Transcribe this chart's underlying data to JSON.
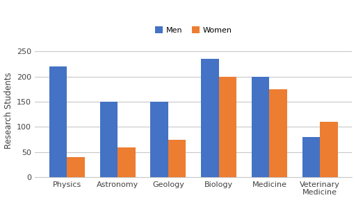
{
  "categories": [
    "Physics",
    "Astronomy",
    "Geology",
    "Biology",
    "Medicine",
    "Veterinary\nMedicine"
  ],
  "men_values": [
    220,
    150,
    150,
    235,
    200,
    80
  ],
  "women_values": [
    40,
    60,
    75,
    200,
    175,
    110
  ],
  "men_color": "#4472C4",
  "women_color": "#ED7D31",
  "ylabel": "Research Students",
  "legend_labels": [
    "Men",
    "Women"
  ],
  "ylim": [
    0,
    265
  ],
  "yticks": [
    0,
    50,
    100,
    150,
    200,
    250
  ],
  "bar_width": 0.35,
  "background_color": "#ffffff",
  "grid_color": "#c8c8c8",
  "label_fontsize": 8.5,
  "tick_fontsize": 8
}
